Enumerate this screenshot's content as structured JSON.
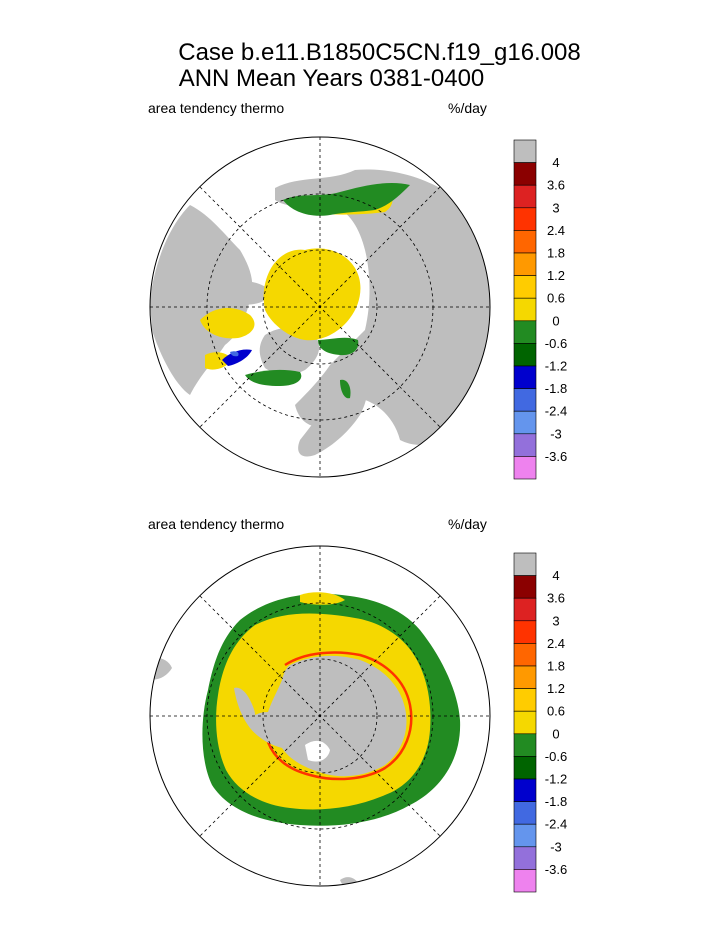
{
  "title_line1": "Case b.e11.B1850C5CN.f19_g16.008",
  "title_line2": "ANN Mean     Years 0381-0400",
  "chart_data": [
    {
      "type": "heatmap",
      "projection": "polar-stereographic",
      "hemisphere": "north",
      "left_label": "area tendency thermo",
      "right_label": "%/day",
      "grid": true,
      "land_color": "#bebebe",
      "colorbar": {
        "levels": [
          "4",
          "3.6",
          "3",
          "2.4",
          "1.8",
          "1.2",
          "0.6",
          "0",
          "-0.6",
          "-1.2",
          "-1.8",
          "-2.4",
          "-3",
          "-3.6"
        ],
        "colors": [
          "#bebebe",
          "#8b0000",
          "#dd2222",
          "#ff3300",
          "#ff6600",
          "#ff9900",
          "#ffcc00",
          "#f5d800",
          "#228b22",
          "#006400",
          "#0000cd",
          "#4169e1",
          "#6495ed",
          "#9370db",
          "#ee82ee"
        ]
      }
    },
    {
      "type": "heatmap",
      "projection": "polar-stereographic",
      "hemisphere": "south",
      "left_label": "area tendency thermo",
      "right_label": "%/day",
      "grid": true,
      "land_color": "#bebebe",
      "colorbar": {
        "levels": [
          "4",
          "3.6",
          "3",
          "2.4",
          "1.8",
          "1.2",
          "0.6",
          "0",
          "-0.6",
          "-1.2",
          "-1.8",
          "-2.4",
          "-3",
          "-3.6"
        ],
        "colors": [
          "#bebebe",
          "#8b0000",
          "#dd2222",
          "#ff3300",
          "#ff6600",
          "#ff9900",
          "#ffcc00",
          "#f5d800",
          "#228b22",
          "#006400",
          "#0000cd",
          "#4169e1",
          "#6495ed",
          "#9370db",
          "#ee82ee"
        ]
      }
    }
  ]
}
